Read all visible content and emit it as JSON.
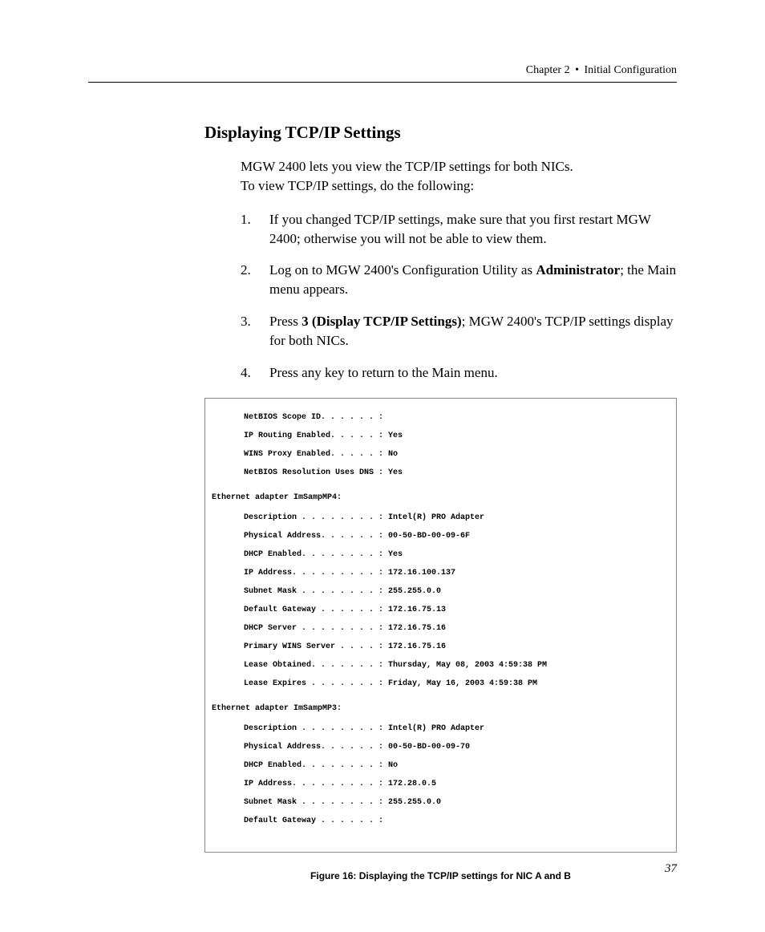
{
  "header": {
    "chapter": "Chapter 2",
    "separator": "•",
    "title": "Initial Configuration"
  },
  "heading": "Displaying TCP/IP Settings",
  "intro_line1": "MGW 2400 lets you view the TCP/IP settings for both NICs.",
  "intro_line2": "To view TCP/IP settings, do the following:",
  "steps": [
    {
      "num": "1.",
      "pre": "If you changed TCP/IP settings, make sure that you first restart MGW 2400; otherwise you will not be able to view them.",
      "bold": "",
      "post": ""
    },
    {
      "num": "2.",
      "pre": "Log on to MGW 2400's Configuration Utility as ",
      "bold": "Administrator",
      "post": "; the Main menu appears."
    },
    {
      "num": "3.",
      "pre": "Press ",
      "bold": "3 (Display TCP/IP Settings)",
      "post": "; MGW 2400's TCP/IP settings display for both NICs."
    },
    {
      "num": "4.",
      "pre": "Press any key to return to the Main menu.",
      "bold": "",
      "post": ""
    }
  ],
  "terminal": {
    "top": [
      "NetBIOS Scope ID. . . . . . :",
      "IP Routing Enabled. . . . . : Yes",
      "WINS Proxy Enabled. . . . . : No",
      "NetBIOS Resolution Uses DNS : Yes"
    ],
    "adapter1_header": "Ethernet adapter ImSampMP4:",
    "adapter1_rows": [
      "Description . . . . . . . . : Intel(R) PRO Adapter",
      "Physical Address. . . . . . : 00-50-BD-00-09-6F",
      "DHCP Enabled. . . . . . . . : Yes",
      "IP Address. . . . . . . . . : 172.16.100.137",
      "Subnet Mask . . . . . . . . : 255.255.0.0",
      "Default Gateway . . . . . . : 172.16.75.13",
      "DHCP Server . . . . . . . . : 172.16.75.16",
      "Primary WINS Server . . . . : 172.16.75.16",
      "Lease Obtained. . . . . . . : Thursday, May 08, 2003 4:59:38 PM",
      "Lease Expires . . . . . . . : Friday, May 16, 2003 4:59:38 PM"
    ],
    "adapter2_header": "Ethernet adapter ImSampMP3:",
    "adapter2_rows": [
      "Description . . . . . . . . : Intel(R) PRO Adapter",
      "Physical Address. . . . . . : 00-50-BD-00-09-70",
      "DHCP Enabled. . . . . . . . : No",
      "IP Address. . . . . . . . . : 172.28.0.5",
      "Subnet Mask . . . . . . . . : 255.255.0.0",
      "Default Gateway . . . . . . :"
    ]
  },
  "figure_caption": "Figure 16: Displaying the TCP/IP settings for NIC A and B",
  "page_number": "37",
  "colors": {
    "text": "#000000",
    "background": "#ffffff",
    "border": "#888888",
    "rule": "#000000"
  },
  "fonts": {
    "body_family": "Times New Roman",
    "body_size_pt": 13,
    "heading_size_pt": 16,
    "heading_weight": "bold",
    "terminal_family": "Courier New",
    "terminal_size_pt": 7.5,
    "caption_family": "Arial",
    "caption_size_pt": 9,
    "caption_weight": "bold"
  }
}
